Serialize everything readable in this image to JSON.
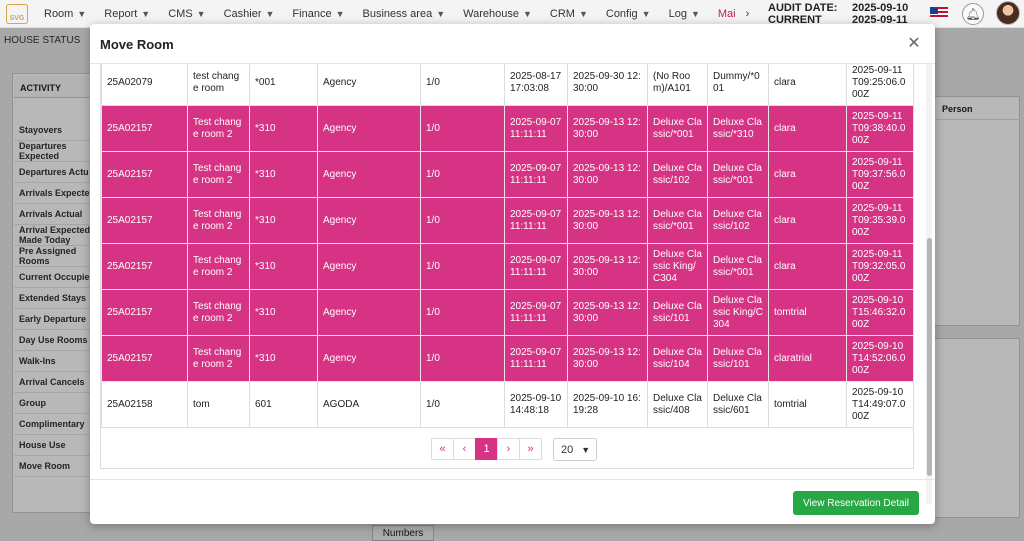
{
  "nav": {
    "logo_text": "SVG",
    "items": [
      {
        "label": "Room"
      },
      {
        "label": "Report"
      },
      {
        "label": "CMS"
      },
      {
        "label": "Cashier"
      },
      {
        "label": "Finance"
      },
      {
        "label": "Business area"
      },
      {
        "label": "Warehouse"
      },
      {
        "label": "CRM"
      },
      {
        "label": "Config"
      },
      {
        "label": "Log"
      },
      {
        "label": "Mai"
      }
    ],
    "more_icon": "chevron-right-icon",
    "audit_date_label": "AUDIT DATE:",
    "audit_date_value": "2025-09-10",
    "current_date_label": "CURRENT DATE:",
    "current_date_value": "2025-09-11",
    "active_color": "#c2185b"
  },
  "background": {
    "house_status": "HOUSE STATUS",
    "activity_header": "ACTIVITY",
    "activity_items": [
      "Stayovers",
      "Departures Expected",
      "Departures Actu",
      "Arrivals Expecte",
      "Arrivals Actual",
      "Arrival Expected Made Today",
      "Pre Assigned Rooms",
      "Current Occupie",
      "Extended Stays",
      "Early Departure",
      "Day Use Rooms",
      "Walk-Ins",
      "Arrival Cancels",
      "Group",
      "Complimentary",
      "House Use",
      "Move Room"
    ],
    "right_header": "Person",
    "bottom_tab": "Numbers"
  },
  "modal": {
    "title": "Move Room",
    "close_icon": "close-icon",
    "rows": [
      {
        "highlight": false,
        "cells": [
          "25A02079",
          "test change room",
          "*001",
          "Agency",
          "1/0",
          "2025-08-17 17:03:08",
          "2025-09-30 12:30:00",
          "(No Room)/A101",
          "Dummy/*001",
          "clara",
          "2025-09-11T09:25:06.000Z"
        ]
      },
      {
        "highlight": true,
        "cells": [
          "25A02157",
          "Test change room 2",
          "*310",
          "Agency",
          "1/0",
          "2025-09-07 11:11:11",
          "2025-09-13 12:30:00",
          "Deluxe Classic/*001",
          "Deluxe Classic/*310",
          "clara",
          "2025-09-11T09:38:40.000Z"
        ]
      },
      {
        "highlight": true,
        "cells": [
          "25A02157",
          "Test change room 2",
          "*310",
          "Agency",
          "1/0",
          "2025-09-07 11:11:11",
          "2025-09-13 12:30:00",
          "Deluxe Classic/102",
          "Deluxe Classic/*001",
          "clara",
          "2025-09-11T09:37:56.000Z"
        ]
      },
      {
        "highlight": true,
        "cells": [
          "25A02157",
          "Test change room 2",
          "*310",
          "Agency",
          "1/0",
          "2025-09-07 11:11:11",
          "2025-09-13 12:30:00",
          "Deluxe Classic/*001",
          "Deluxe Classic/102",
          "clara",
          "2025-09-11T09:35:39.000Z"
        ]
      },
      {
        "highlight": true,
        "cells": [
          "25A02157",
          "Test change room 2",
          "*310",
          "Agency",
          "1/0",
          "2025-09-07 11:11:11",
          "2025-09-13 12:30:00",
          "Deluxe Classic King/C304",
          "Deluxe Classic/*001",
          "clara",
          "2025-09-11T09:32:05.000Z"
        ]
      },
      {
        "highlight": true,
        "cells": [
          "25A02157",
          "Test change room 2",
          "*310",
          "Agency",
          "1/0",
          "2025-09-07 11:11:11",
          "2025-09-13 12:30:00",
          "Deluxe Classic/101",
          "Deluxe Classic King/C304",
          "tomtrial",
          "2025-09-10T15:46:32.000Z"
        ]
      },
      {
        "highlight": true,
        "cells": [
          "25A02157",
          "Test change room 2",
          "*310",
          "Agency",
          "1/0",
          "2025-09-07 11:11:11",
          "2025-09-13 12:30:00",
          "Deluxe Classic/104",
          "Deluxe Classic/101",
          "claratrial",
          "2025-09-10T14:52:06.000Z"
        ]
      },
      {
        "highlight": false,
        "cells": [
          "25A02158",
          "tom",
          "601",
          "AGODA",
          "1/0",
          "2025-09-10 14:48:18",
          "2025-09-10 16:19:28",
          "Deluxe Classic/408",
          "Deluxe Classic/601",
          "tomtrial",
          "2025-09-10T14:49:07.000Z"
        ]
      }
    ],
    "pagination": {
      "first": "«",
      "prev": "‹",
      "current": "1",
      "next": "›",
      "last": "»",
      "page_size": "20"
    },
    "footer_button": "View Reservation Detail",
    "highlight_color": "#d63384",
    "button_color": "#28a745"
  }
}
